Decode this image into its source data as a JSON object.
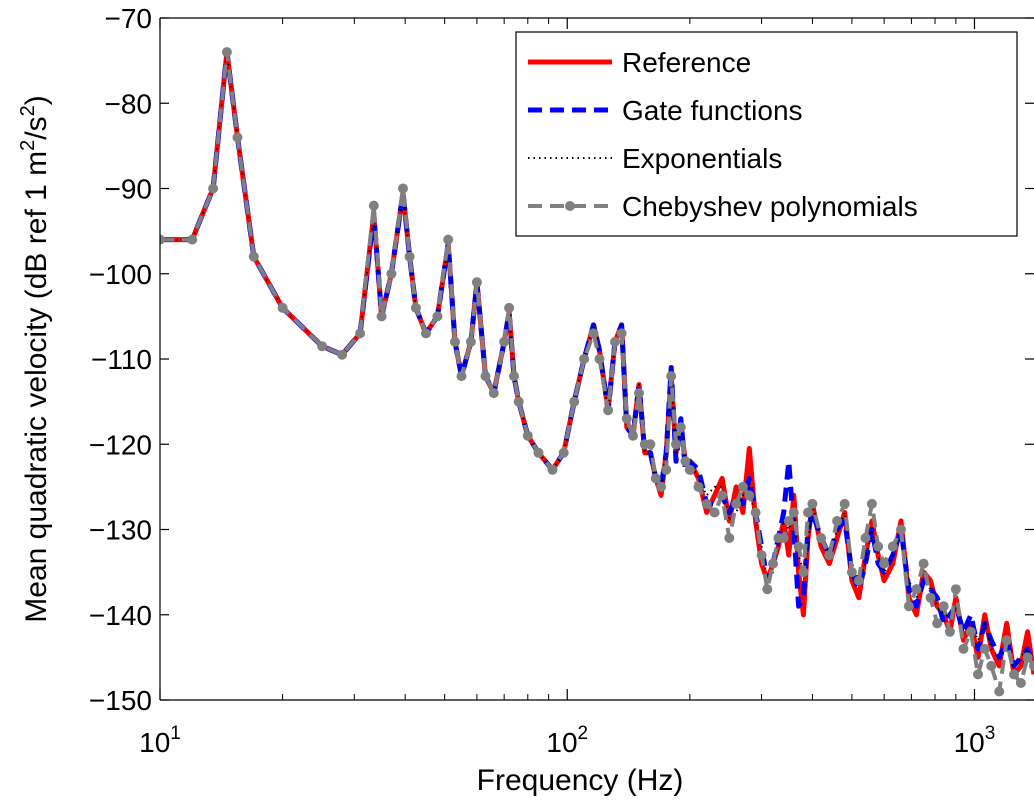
{
  "chart_data": {
    "type": "line",
    "title": "",
    "xlabel": "Frequency (Hz)",
    "ylabel_main": "Mean quadratic velocity (dB ref 1 m",
    "ylabel_sup1": "2",
    "ylabel_mid": "/s",
    "ylabel_sup2": "2",
    "ylabel_end": ")",
    "x_scale": "log",
    "xlim": [
      10,
      1400
    ],
    "ylim": [
      -150,
      -70
    ],
    "grid": false,
    "legend_position": "top-right",
    "x_ticks": [
      {
        "value": 10,
        "base": "10",
        "exp": "1"
      },
      {
        "value": 100,
        "base": "10",
        "exp": "2"
      },
      {
        "value": 1000,
        "base": "10",
        "exp": "3"
      }
    ],
    "y_ticks": [
      {
        "value": -70,
        "label": "−70"
      },
      {
        "value": -80,
        "label": "−80"
      },
      {
        "value": -90,
        "label": "−90"
      },
      {
        "value": -100,
        "label": "−100"
      },
      {
        "value": -110,
        "label": "−110"
      },
      {
        "value": -120,
        "label": "−120"
      },
      {
        "value": -130,
        "label": "−130"
      },
      {
        "value": -140,
        "label": "−140"
      },
      {
        "value": -150,
        "label": "−150"
      }
    ],
    "series": [
      {
        "name": "Reference",
        "color": "#ff0000",
        "style": "solid",
        "marker": "none",
        "x": [
          10,
          12,
          13.5,
          14.6,
          15.5,
          17,
          20,
          25,
          28,
          31,
          33.5,
          35,
          37,
          39.5,
          41,
          42.5,
          45,
          48,
          51,
          53,
          55,
          58,
          60,
          63,
          66,
          70,
          72,
          74,
          76,
          80,
          85,
          92,
          98,
          104,
          110,
          116,
          120,
          126,
          131,
          136,
          140,
          145,
          150,
          155,
          160,
          165,
          170,
          175,
          180,
          185,
          190,
          195,
          200,
          210,
          220,
          230,
          240,
          250,
          260,
          270,
          280,
          290,
          300,
          310,
          320,
          330,
          340,
          350,
          360,
          370,
          380,
          390,
          400,
          420,
          440,
          460,
          480,
          500,
          520,
          540,
          560,
          580,
          600,
          630,
          660,
          690,
          720,
          750,
          780,
          810,
          840,
          870,
          900,
          940,
          980,
          1020,
          1060,
          1100,
          1150,
          1200,
          1250,
          1300,
          1350,
          1400
        ],
        "y": [
          -96,
          -96,
          -90,
          -74,
          -84,
          -98,
          -104,
          -108.5,
          -109.5,
          -107,
          -93,
          -105,
          -100,
          -90.5,
          -98,
          -104,
          -107,
          -105,
          -96.5,
          -108,
          -112,
          -108,
          -101,
          -112,
          -114,
          -108,
          -104.5,
          -112,
          -115,
          -119,
          -121,
          -123,
          -121,
          -115,
          -110,
          -106,
          -109,
          -116,
          -108,
          -106,
          -118,
          -119,
          -113,
          -121,
          -121,
          -124,
          -126,
          -121,
          -112,
          -121,
          -118,
          -122,
          -122,
          -124,
          -128,
          -126,
          -124,
          -129,
          -125,
          -128,
          -120.5,
          -129,
          -134,
          -136,
          -134,
          -132,
          -129,
          -133,
          -126,
          -135,
          -140,
          -131,
          -127,
          -132,
          -134,
          -131,
          -128,
          -136,
          -138,
          -133,
          -129,
          -133,
          -136,
          -134,
          -129,
          -138,
          -140,
          -135,
          -136,
          -139,
          -140,
          -142,
          -138,
          -143,
          -141,
          -145,
          -140,
          -144,
          -146,
          -141,
          -147,
          -146,
          -142,
          -147
        ]
      },
      {
        "name": "Gate functions",
        "color": "#0000ff",
        "style": "dashed",
        "marker": "none",
        "x": [
          10,
          12,
          13.5,
          14.6,
          15.5,
          17,
          20,
          25,
          28,
          31,
          33.5,
          35,
          37,
          39.5,
          41,
          42.5,
          45,
          48,
          51,
          53,
          55,
          58,
          60,
          63,
          66,
          70,
          72,
          74,
          76,
          80,
          85,
          92,
          98,
          104,
          110,
          116,
          120,
          126,
          131,
          136,
          140,
          145,
          150,
          155,
          160,
          165,
          170,
          175,
          180,
          185,
          190,
          195,
          200,
          210,
          220,
          230,
          240,
          250,
          260,
          270,
          280,
          290,
          300,
          310,
          320,
          330,
          340,
          350,
          360,
          370,
          380,
          390,
          400,
          420,
          440,
          460,
          480,
          500,
          520,
          540,
          560,
          580,
          600,
          630,
          660,
          690,
          720,
          750,
          780,
          810,
          840,
          870,
          900,
          940,
          980,
          1020,
          1060,
          1100,
          1150,
          1200,
          1250,
          1300,
          1350,
          1400
        ],
        "y": [
          -96,
          -96,
          -90,
          -74,
          -84,
          -98,
          -104,
          -108.5,
          -109.5,
          -107,
          -93,
          -105,
          -100,
          -90.5,
          -98,
          -104,
          -107,
          -105,
          -96.5,
          -108,
          -112,
          -108,
          -101,
          -112,
          -114,
          -108,
          -104.5,
          -112,
          -115,
          -119,
          -121,
          -123,
          -121,
          -115,
          -110,
          -106,
          -109,
          -116,
          -108,
          -106,
          -118,
          -119,
          -113,
          -121,
          -121,
          -124,
          -125,
          -121,
          -111,
          -122,
          -117,
          -123,
          -122,
          -123,
          -127,
          -127,
          -126,
          -128,
          -126,
          -127,
          -124,
          -128,
          -132,
          -136,
          -134,
          -131,
          -128,
          -122,
          -130,
          -139,
          -138,
          -130,
          -128,
          -131,
          -133,
          -130,
          -129,
          -135,
          -137,
          -134,
          -130,
          -134,
          -135,
          -133,
          -130,
          -137,
          -139,
          -136,
          -137,
          -138,
          -141,
          -140,
          -139,
          -142,
          -140,
          -144,
          -141,
          -143,
          -145,
          -143,
          -146,
          -145,
          -144,
          -146
        ]
      },
      {
        "name": "Exponentials",
        "color": "#000000",
        "style": "dotted",
        "marker": "none",
        "x": [
          10,
          12,
          13.5,
          14.6,
          15.5,
          17,
          20,
          25,
          28,
          31,
          33.5,
          35,
          37,
          39.5,
          41,
          42.5,
          45,
          48,
          51,
          53,
          55,
          58,
          60,
          63,
          66,
          70,
          72,
          74,
          76,
          80,
          85,
          92,
          98,
          104,
          110,
          116,
          120,
          126,
          131,
          136,
          140,
          145,
          150,
          155,
          160,
          165,
          170,
          175,
          180,
          185,
          190,
          195,
          200,
          210,
          220,
          230,
          240,
          250,
          260,
          270,
          280,
          290,
          300,
          310,
          320,
          330,
          340,
          350,
          360,
          370,
          380,
          390,
          400,
          420,
          440,
          460,
          480,
          500,
          520,
          540,
          560,
          580,
          600,
          630,
          660,
          690,
          720,
          750,
          780,
          810,
          840,
          870,
          900,
          940,
          980,
          1020,
          1060,
          1100,
          1150,
          1200,
          1250,
          1300,
          1350,
          1400
        ],
        "y": [
          -96,
          -96,
          -90,
          -74,
          -84,
          -98,
          -104,
          -108.5,
          -109.5,
          -107,
          -93,
          -105,
          -100,
          -90.5,
          -98,
          -104,
          -107,
          -105,
          -96.5,
          -108,
          -112,
          -108,
          -101,
          -112,
          -114,
          -108,
          -104.5,
          -112,
          -115,
          -119,
          -121,
          -123,
          -121,
          -115,
          -110,
          -106,
          -109,
          -116,
          -108,
          -106,
          -118,
          -119,
          -113,
          -121,
          -121,
          -124,
          -125,
          -121,
          -113,
          -121,
          -118,
          -122,
          -122,
          -124,
          -126,
          -125,
          -125,
          -129,
          -128,
          -126,
          -125,
          -129,
          -132,
          -136,
          -135,
          -132,
          -129,
          -130,
          -128,
          -133,
          -135,
          -132,
          -127,
          -131,
          -133,
          -130,
          -128,
          -134,
          -136,
          -134,
          -130,
          -133,
          -135,
          -133,
          -131,
          -136,
          -138,
          -136,
          -137,
          -139,
          -140,
          -140,
          -139,
          -142,
          -141,
          -143,
          -141,
          -144,
          -145,
          -144,
          -146,
          -145,
          -144,
          -146
        ]
      },
      {
        "name": "Chebyshev polynomials",
        "color": "#808080",
        "style": "dashed",
        "marker": "circle",
        "x": [
          10,
          12,
          13.5,
          14.6,
          15.5,
          17,
          20,
          25,
          28,
          31,
          33.5,
          35,
          37,
          39.5,
          41,
          42.5,
          45,
          48,
          51,
          53,
          55,
          58,
          60,
          63,
          66,
          70,
          72,
          74,
          76,
          80,
          85,
          92,
          98,
          104,
          110,
          116,
          120,
          126,
          131,
          136,
          140,
          145,
          150,
          155,
          160,
          165,
          170,
          175,
          180,
          185,
          190,
          195,
          200,
          210,
          220,
          230,
          240,
          250,
          260,
          270,
          280,
          290,
          300,
          310,
          320,
          330,
          340,
          350,
          360,
          370,
          380,
          390,
          400,
          420,
          440,
          460,
          480,
          500,
          520,
          540,
          560,
          580,
          600,
          630,
          660,
          690,
          720,
          750,
          780,
          810,
          840,
          870,
          900,
          940,
          980,
          1020,
          1060,
          1100,
          1150,
          1200,
          1250,
          1300,
          1350,
          1400
        ],
        "y": [
          -96,
          -96,
          -90,
          -74,
          -84,
          -98,
          -104,
          -108.5,
          -109.5,
          -107,
          -92,
          -105,
          -100,
          -90,
          -98,
          -104,
          -107,
          -105,
          -96,
          -108,
          -112,
          -108,
          -101,
          -112,
          -114,
          -108,
          -104,
          -112,
          -115,
          -119,
          -121,
          -123,
          -121,
          -115,
          -110,
          -107,
          -110,
          -116,
          -108,
          -107,
          -117,
          -119,
          -114,
          -120,
          -120,
          -124,
          -125,
          -123,
          -112,
          -120,
          -118,
          -122,
          -123,
          -125,
          -127,
          -128,
          -126,
          -131,
          -127,
          -125,
          -126,
          -128,
          -133,
          -137,
          -134,
          -131,
          -131,
          -129,
          -128,
          -132,
          -135,
          -128,
          -127,
          -131,
          -133,
          -129,
          -127,
          -135,
          -136,
          -131,
          -127,
          -132,
          -134,
          -132,
          -130,
          -139,
          -137,
          -134,
          -138,
          -141,
          -139,
          -142,
          -137,
          -144,
          -142,
          -147,
          -144,
          -146,
          -149,
          -143,
          -147,
          -148,
          -145,
          -146
        ]
      }
    ]
  }
}
